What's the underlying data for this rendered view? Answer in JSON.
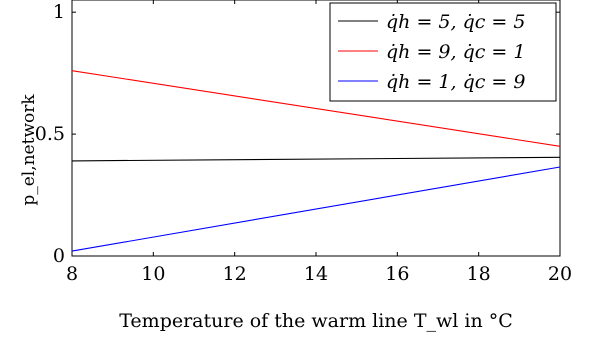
{
  "chart_data": {
    "type": "line",
    "xlabel": "Temperature of the warm line T_wl in °C",
    "ylabel": "p_el,network",
    "xlim": [
      8,
      20
    ],
    "ylim": [
      0,
      1.05
    ],
    "xticks": [
      "8",
      "10",
      "12",
      "14",
      "16",
      "18",
      "20"
    ],
    "yticks": [
      "0",
      "0.5",
      "1"
    ],
    "grid": false,
    "legend_position": "top-right",
    "series": [
      {
        "name": "q̇h = 5, q̇c = 5",
        "color": "#000000",
        "x": [
          8,
          20
        ],
        "y": [
          0.39,
          0.405
        ]
      },
      {
        "name": "q̇h = 9, q̇c = 1",
        "color": "#ff0000",
        "x": [
          8,
          20
        ],
        "y": [
          0.76,
          0.45
        ]
      },
      {
        "name": "q̇h = 1, q̇c = 9",
        "color": "#0000ff",
        "x": [
          8,
          20
        ],
        "y": [
          0.02,
          0.365
        ]
      }
    ]
  }
}
